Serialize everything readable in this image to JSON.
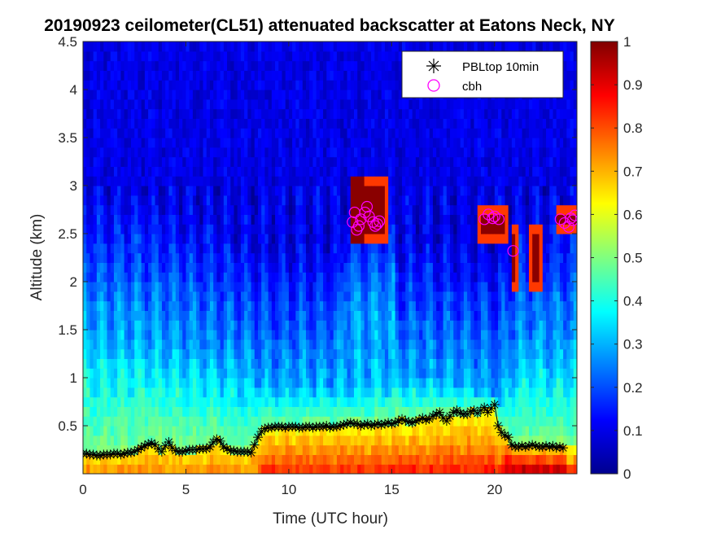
{
  "chart_data": {
    "type": "heatmap",
    "title": "20190923 ceilometer(CL51) attenuated backscatter at Eatons Neck, NY",
    "xlabel": "Time (UTC hour)",
    "ylabel": "Altitude (km)",
    "xlim": [
      0,
      24
    ],
    "ylim": [
      0,
      4.5
    ],
    "clim": [
      0,
      1
    ],
    "colormap": "jet",
    "x_ticks": [
      "0",
      "5",
      "10",
      "15",
      "20"
    ],
    "y_ticks": [
      "0.5",
      "1",
      "1.5",
      "2",
      "2.5",
      "3",
      "3.5",
      "4",
      "4.5"
    ],
    "colorbar_ticks": [
      "0",
      "0.1",
      "0.2",
      "0.3",
      "0.4",
      "0.5",
      "0.6",
      "0.7",
      "0.8",
      "0.9",
      "1"
    ],
    "legend": {
      "location": "top-right",
      "entries": [
        {
          "label": "PBLtop 10min",
          "marker": "asterisk",
          "color": "#000000"
        },
        {
          "label": "cbh",
          "marker": "circle",
          "color": "#ff00ff"
        }
      ]
    },
    "series": [
      {
        "name": "PBLtop 10min",
        "x": [
          0.0,
          0.17,
          0.33,
          0.5,
          0.67,
          0.83,
          1.0,
          1.17,
          1.33,
          1.5,
          1.67,
          1.83,
          2.0,
          2.17,
          2.33,
          2.5,
          2.67,
          2.83,
          3.0,
          3.17,
          3.33,
          3.5,
          3.67,
          3.83,
          4.0,
          4.17,
          4.33,
          4.5,
          4.67,
          4.83,
          5.0,
          5.17,
          5.33,
          5.5,
          5.67,
          5.83,
          6.0,
          6.17,
          6.33,
          6.5,
          6.67,
          6.83,
          7.0,
          7.17,
          7.33,
          7.5,
          7.67,
          7.83,
          8.0,
          8.17,
          8.33,
          8.5,
          8.67,
          8.83,
          9.0,
          9.17,
          9.33,
          9.5,
          9.67,
          9.83,
          10.0,
          10.17,
          10.33,
          10.5,
          10.67,
          10.83,
          11.0,
          11.17,
          11.33,
          11.5,
          11.67,
          11.83,
          12.0,
          12.17,
          12.33,
          12.5,
          12.67,
          12.83,
          13.0,
          13.17,
          13.33,
          13.5,
          13.67,
          13.83,
          14.0,
          14.17,
          14.33,
          14.5,
          14.67,
          14.83,
          15.0,
          15.17,
          15.33,
          15.5,
          15.67,
          15.83,
          16.0,
          16.17,
          16.33,
          16.5,
          16.67,
          16.83,
          17.0,
          17.17,
          17.33,
          17.5,
          17.67,
          17.83,
          18.0,
          18.17,
          18.33,
          18.5,
          18.67,
          18.83,
          19.0,
          19.17,
          19.33,
          19.5,
          19.67,
          19.83,
          20.0,
          20.17,
          20.33,
          20.5,
          20.67,
          20.83,
          21.0,
          21.17,
          21.33,
          21.5,
          21.67,
          21.83,
          22.0,
          22.17,
          22.33,
          22.5,
          22.67,
          22.83,
          23.0,
          23.17,
          23.33
        ],
        "y": [
          0.21,
          0.21,
          0.2,
          0.2,
          0.19,
          0.19,
          0.2,
          0.2,
          0.2,
          0.21,
          0.21,
          0.2,
          0.21,
          0.22,
          0.22,
          0.23,
          0.25,
          0.27,
          0.29,
          0.31,
          0.32,
          0.3,
          0.26,
          0.23,
          0.29,
          0.33,
          0.27,
          0.24,
          0.23,
          0.23,
          0.24,
          0.25,
          0.25,
          0.25,
          0.26,
          0.26,
          0.26,
          0.28,
          0.33,
          0.36,
          0.34,
          0.28,
          0.26,
          0.24,
          0.24,
          0.23,
          0.23,
          0.23,
          0.23,
          0.22,
          0.3,
          0.38,
          0.44,
          0.47,
          0.48,
          0.48,
          0.49,
          0.49,
          0.49,
          0.48,
          0.49,
          0.49,
          0.49,
          0.48,
          0.48,
          0.49,
          0.49,
          0.48,
          0.49,
          0.49,
          0.49,
          0.5,
          0.48,
          0.49,
          0.49,
          0.5,
          0.51,
          0.52,
          0.53,
          0.52,
          0.52,
          0.5,
          0.51,
          0.52,
          0.5,
          0.51,
          0.52,
          0.51,
          0.52,
          0.53,
          0.52,
          0.53,
          0.55,
          0.57,
          0.55,
          0.54,
          0.53,
          0.55,
          0.56,
          0.58,
          0.56,
          0.57,
          0.6,
          0.62,
          0.64,
          0.58,
          0.55,
          0.6,
          0.64,
          0.66,
          0.63,
          0.62,
          0.62,
          0.65,
          0.66,
          0.63,
          0.66,
          0.69,
          0.64,
          0.68,
          0.72,
          0.5,
          0.43,
          0.4,
          0.38,
          0.3,
          0.28,
          0.28,
          0.29,
          0.28,
          0.29,
          0.3,
          0.29,
          0.28,
          0.28,
          0.29,
          0.28,
          0.29,
          0.27,
          0.28,
          0.27
        ]
      },
      {
        "name": "cbh",
        "x": [
          13.1,
          13.2,
          13.3,
          13.4,
          13.5,
          13.7,
          13.8,
          13.9,
          14.1,
          14.2,
          14.3,
          14.4,
          19.5,
          19.7,
          19.9,
          20.0,
          20.2,
          20.9,
          23.2,
          23.4,
          23.6,
          23.7,
          23.8,
          23.9
        ],
        "y": [
          2.62,
          2.72,
          2.54,
          2.58,
          2.65,
          2.72,
          2.78,
          2.68,
          2.62,
          2.58,
          2.6,
          2.63,
          2.65,
          2.7,
          2.66,
          2.68,
          2.65,
          2.32,
          2.65,
          2.61,
          2.57,
          2.66,
          2.64,
          2.69
        ]
      }
    ]
  }
}
